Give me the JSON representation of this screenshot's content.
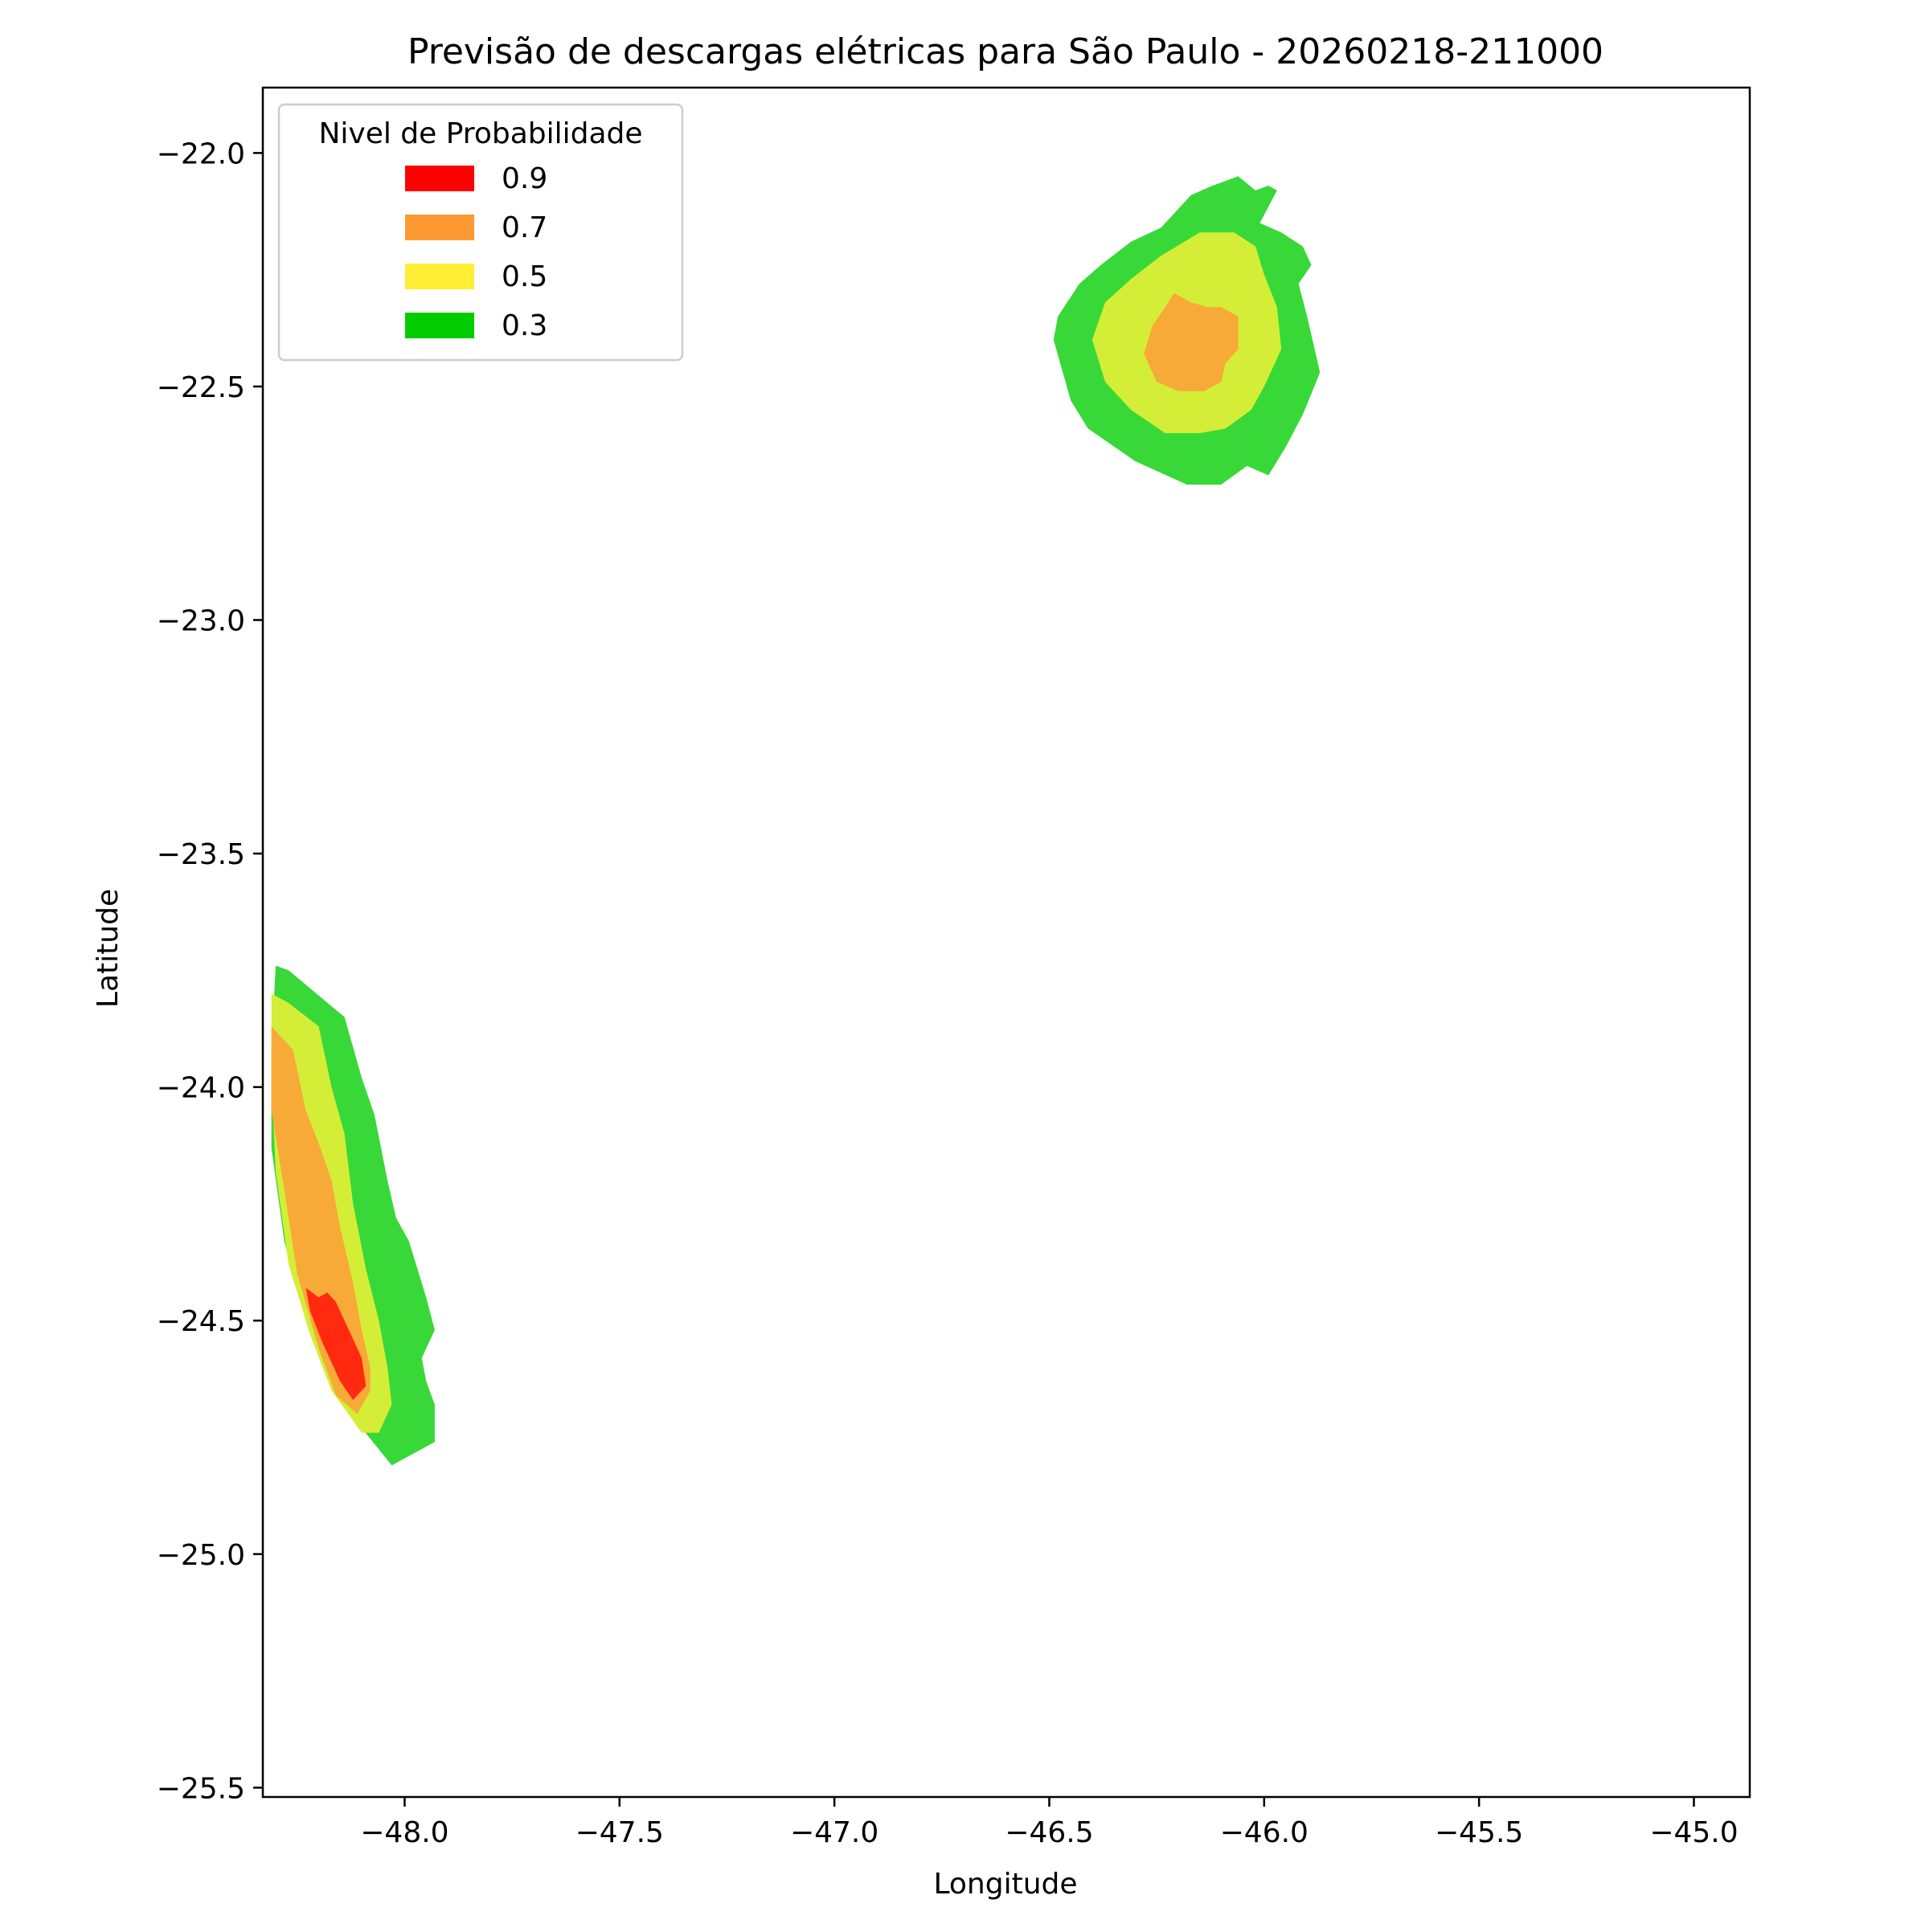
{
  "chart_data": {
    "type": "contour",
    "title": "Previsão de descargas elétricas para São Paulo - 20260218-211000",
    "xlabel": "Longitude",
    "ylabel": "Latitude",
    "xlim": [
      -48.33,
      -44.87
    ],
    "ylim": [
      -25.52,
      -21.86
    ],
    "xticks": [
      -48.0,
      -47.5,
      -47.0,
      -46.5,
      -46.0,
      -45.5,
      -45.0
    ],
    "xtick_labels": [
      "−48.0",
      "−47.5",
      "−47.0",
      "−46.5",
      "−46.0",
      "−45.5",
      "−45.0"
    ],
    "yticks": [
      -22.0,
      -22.5,
      -23.0,
      -23.5,
      -24.0,
      -24.5,
      -25.0,
      -25.5
    ],
    "ytick_labels": [
      "−22.0",
      "−22.5",
      "−23.0",
      "−23.5",
      "−24.0",
      "−24.5",
      "−25.0",
      "−25.5"
    ],
    "grid": false,
    "legend": {
      "title": "Nivel de Probabilidade",
      "placement": "top-left",
      "entries": [
        {
          "label": "0.9",
          "color": "#ff0000"
        },
        {
          "label": "0.7",
          "color": "#ff9933"
        },
        {
          "label": "0.5",
          "color": "#ffee33"
        },
        {
          "label": "0.3",
          "color": "#00cc00"
        }
      ]
    },
    "fill_colors": {
      "0.3": "#38d838",
      "0.5": "#d4ee38",
      "0.7": "#f7aa38",
      "0.9": "#ff2a10"
    },
    "regions": [
      {
        "level": "0.3",
        "points": [
          [
            -46.12,
            -22.07
          ],
          [
            -46.06,
            -22.05
          ],
          [
            -46.02,
            -22.08
          ],
          [
            -45.99,
            -22.07
          ],
          [
            -45.97,
            -22.08
          ],
          [
            -46.01,
            -22.15
          ],
          [
            -45.96,
            -22.17
          ],
          [
            -45.91,
            -22.2
          ],
          [
            -45.89,
            -22.24
          ],
          [
            -45.92,
            -22.28
          ],
          [
            -45.9,
            -22.35
          ],
          [
            -45.87,
            -22.47
          ],
          [
            -45.91,
            -22.56
          ],
          [
            -45.95,
            -22.63
          ],
          [
            -45.99,
            -22.69
          ],
          [
            -46.04,
            -22.67
          ],
          [
            -46.1,
            -22.71
          ],
          [
            -46.18,
            -22.71
          ],
          [
            -46.3,
            -22.66
          ],
          [
            -46.41,
            -22.59
          ],
          [
            -46.45,
            -22.53
          ],
          [
            -46.49,
            -22.4
          ],
          [
            -46.48,
            -22.35
          ],
          [
            -46.43,
            -22.28
          ],
          [
            -46.38,
            -22.24
          ],
          [
            -46.31,
            -22.19
          ],
          [
            -46.24,
            -22.16
          ],
          [
            -46.17,
            -22.09
          ]
        ]
      },
      {
        "level": "0.5",
        "points": [
          [
            -46.15,
            -22.17
          ],
          [
            -46.07,
            -22.17
          ],
          [
            -46.02,
            -22.2
          ],
          [
            -46.0,
            -22.26
          ],
          [
            -45.97,
            -22.33
          ],
          [
            -45.96,
            -22.42
          ],
          [
            -46.0,
            -22.5
          ],
          [
            -46.03,
            -22.55
          ],
          [
            -46.09,
            -22.59
          ],
          [
            -46.15,
            -22.6
          ],
          [
            -46.23,
            -22.6
          ],
          [
            -46.31,
            -22.55
          ],
          [
            -46.37,
            -22.49
          ],
          [
            -46.4,
            -22.4
          ],
          [
            -46.37,
            -22.32
          ],
          [
            -46.31,
            -22.27
          ],
          [
            -46.24,
            -22.22
          ]
        ]
      },
      {
        "level": "0.7",
        "points": [
          [
            -46.21,
            -22.3
          ],
          [
            -46.17,
            -22.32
          ],
          [
            -46.13,
            -22.33
          ],
          [
            -46.1,
            -22.33
          ],
          [
            -46.06,
            -22.35
          ],
          [
            -46.06,
            -22.42
          ],
          [
            -46.09,
            -22.45
          ],
          [
            -46.1,
            -22.49
          ],
          [
            -46.14,
            -22.51
          ],
          [
            -46.2,
            -22.51
          ],
          [
            -46.25,
            -22.49
          ],
          [
            -46.28,
            -22.43
          ],
          [
            -46.26,
            -22.37
          ],
          [
            -46.23,
            -22.33
          ]
        ]
      },
      {
        "level": "0.3",
        "points": [
          [
            -48.3,
            -23.74
          ],
          [
            -48.27,
            -23.75
          ],
          [
            -48.14,
            -23.85
          ],
          [
            -48.1,
            -23.98
          ],
          [
            -48.07,
            -24.06
          ],
          [
            -48.04,
            -24.2
          ],
          [
            -48.02,
            -24.28
          ],
          [
            -47.99,
            -24.33
          ],
          [
            -47.95,
            -24.45
          ],
          [
            -47.93,
            -24.52
          ],
          [
            -47.96,
            -24.58
          ],
          [
            -47.95,
            -24.63
          ],
          [
            -47.93,
            -24.68
          ],
          [
            -47.93,
            -24.76
          ],
          [
            -47.99,
            -24.79
          ],
          [
            -48.03,
            -24.81
          ],
          [
            -48.1,
            -24.73
          ],
          [
            -48.17,
            -24.63
          ],
          [
            -48.23,
            -24.5
          ],
          [
            -48.28,
            -24.33
          ],
          [
            -48.31,
            -24.13
          ],
          [
            -48.31,
            -23.92
          ]
        ]
      },
      {
        "level": "0.5",
        "points": [
          [
            -48.31,
            -23.8
          ],
          [
            -48.27,
            -23.82
          ],
          [
            -48.2,
            -23.87
          ],
          [
            -48.17,
            -24.0
          ],
          [
            -48.14,
            -24.1
          ],
          [
            -48.12,
            -24.25
          ],
          [
            -48.09,
            -24.39
          ],
          [
            -48.06,
            -24.5
          ],
          [
            -48.04,
            -24.6
          ],
          [
            -48.03,
            -24.68
          ],
          [
            -48.06,
            -24.74
          ],
          [
            -48.1,
            -24.74
          ],
          [
            -48.17,
            -24.65
          ],
          [
            -48.22,
            -24.53
          ],
          [
            -48.27,
            -24.38
          ],
          [
            -48.3,
            -24.18
          ],
          [
            -48.31,
            -23.98
          ]
        ]
      },
      {
        "level": "0.7",
        "points": [
          [
            -48.31,
            -23.87
          ],
          [
            -48.26,
            -23.92
          ],
          [
            -48.23,
            -24.05
          ],
          [
            -48.2,
            -24.12
          ],
          [
            -48.17,
            -24.2
          ],
          [
            -48.15,
            -24.3
          ],
          [
            -48.12,
            -24.42
          ],
          [
            -48.1,
            -24.52
          ],
          [
            -48.08,
            -24.6
          ],
          [
            -48.08,
            -24.65
          ],
          [
            -48.11,
            -24.7
          ],
          [
            -48.16,
            -24.66
          ],
          [
            -48.2,
            -24.56
          ],
          [
            -48.25,
            -24.4
          ],
          [
            -48.28,
            -24.22
          ],
          [
            -48.31,
            -24.05
          ]
        ]
      },
      {
        "level": "0.9",
        "points": [
          [
            -48.23,
            -24.43
          ],
          [
            -48.2,
            -24.45
          ],
          [
            -48.18,
            -24.44
          ],
          [
            -48.16,
            -24.46
          ],
          [
            -48.14,
            -24.5
          ],
          [
            -48.1,
            -24.58
          ],
          [
            -48.09,
            -24.64
          ],
          [
            -48.12,
            -24.67
          ],
          [
            -48.15,
            -24.63
          ],
          [
            -48.19,
            -24.55
          ],
          [
            -48.22,
            -24.48
          ]
        ]
      }
    ]
  }
}
